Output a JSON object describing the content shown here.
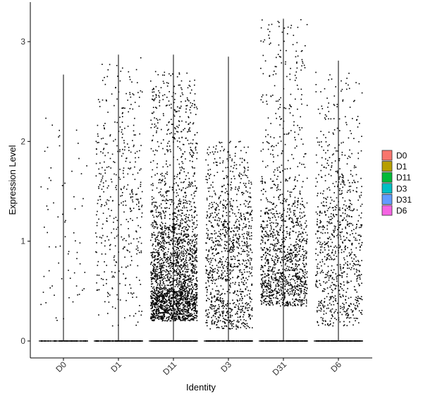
{
  "chart_data": {
    "type": "scatter",
    "subtype": "violin-jitter",
    "title": "",
    "xlabel": "Identity",
    "ylabel": "Expression Level",
    "ylim": [
      -0.18,
      3.28
    ],
    "yticks": [
      0,
      1,
      2,
      3
    ],
    "grid": false,
    "legend_position": "right",
    "categories": [
      "D0",
      "D1",
      "D11",
      "D3",
      "D31",
      "D6"
    ],
    "series": [
      {
        "name": "D0",
        "color": "#F8766D",
        "max": 2.67,
        "n_zero": 60,
        "n_expr": 70,
        "mean": 1.1,
        "sd": 0.7,
        "ymin": 0.2,
        "ymax": 2.6
      },
      {
        "name": "D1",
        "color": "#B79F00",
        "max": 2.87,
        "n_zero": 120,
        "n_expr": 420,
        "mean": 1.45,
        "sd": 0.6,
        "ymin": 0.15,
        "ymax": 2.85
      },
      {
        "name": "D11",
        "color": "#00BA38",
        "max": 2.87,
        "n_zero": 150,
        "n_expr": 2500,
        "mean": 0.55,
        "sd": 0.45,
        "ymin": 0.2,
        "ymax": 2.7
      },
      {
        "name": "D3",
        "color": "#00BFC4",
        "max": 2.85,
        "n_zero": 150,
        "n_expr": 1100,
        "mean": 0.8,
        "sd": 0.55,
        "ymin": 0.12,
        "ymax": 2.0
      },
      {
        "name": "D31",
        "color": "#619CFF",
        "max": 3.23,
        "n_zero": 150,
        "n_expr": 1300,
        "mean": 0.75,
        "sd": 0.45,
        "ymin": 0.35,
        "ymax": 3.22
      },
      {
        "name": "D6",
        "color": "#F564E3",
        "max": 2.81,
        "n_zero": 140,
        "n_expr": 850,
        "mean": 0.85,
        "sd": 0.55,
        "ymin": 0.15,
        "ymax": 2.7
      }
    ]
  }
}
